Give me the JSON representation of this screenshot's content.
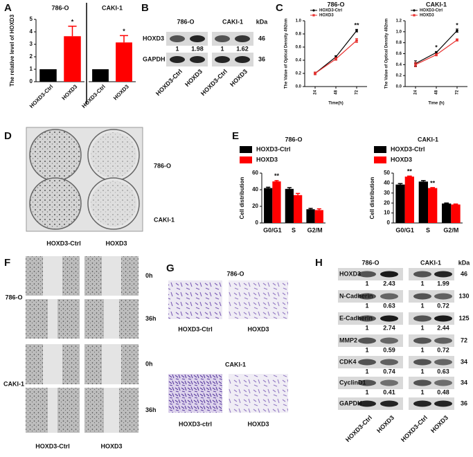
{
  "panel_labels": [
    "A",
    "B",
    "C",
    "D",
    "E",
    "F",
    "G",
    "H"
  ],
  "chart_data": [
    {
      "type": "bar",
      "title": "786-O",
      "y_label": "The relative level of HOXD3",
      "categories": [
        "HOXD3-Ctrl",
        "HOXD3"
      ],
      "values": [
        1,
        3.65
      ],
      "errors": [
        null,
        0.8
      ],
      "colors": [
        "#000000",
        "#ff0000"
      ],
      "significance": [
        null,
        "*"
      ],
      "ylim": [
        0,
        5
      ],
      "yticks": [
        0,
        1,
        2,
        3,
        4,
        5
      ]
    },
    {
      "type": "bar",
      "title": "CAKI-1",
      "categories": [
        "HOXD3-Ctrl",
        "HOXD3"
      ],
      "values": [
        1,
        3.15
      ],
      "errors": [
        null,
        0.55
      ],
      "colors": [
        "#000000",
        "#ff0000"
      ],
      "significance": [
        null,
        "*"
      ],
      "ylim": [
        0,
        5
      ]
    },
    {
      "type": "line",
      "title": "786-O",
      "x_label": "Time(h)",
      "y_label": "The Value of Optical Density 492nm",
      "x": [
        24,
        48,
        72
      ],
      "xlim": [
        12,
        84
      ],
      "xticks": [
        24,
        48,
        72
      ],
      "ylim": [
        0,
        1.0
      ],
      "yticks": [
        {
          "value": 0,
          "label": "0.0"
        },
        0.2,
        0.4,
        0.6,
        0.8,
        {
          "value": 1,
          "label": "1.0"
        }
      ],
      "series": [
        {
          "name": "HOXD3-Ctrl",
          "color": "#000000",
          "values": [
            0.2,
            0.45,
            0.85
          ],
          "errors": [
            0.02,
            0.02,
            0.02
          ]
        },
        {
          "name": "HOXD3",
          "color": "#e8312f",
          "values": [
            0.2,
            0.42,
            0.7
          ],
          "errors": [
            0.02,
            0.02,
            0.03
          ]
        }
      ],
      "significance": [
        null,
        null,
        "**"
      ]
    },
    {
      "type": "line",
      "title": "CAKI-1",
      "x_label": "Time (h)",
      "y_label": "The Value of Optical Density 492nm",
      "x": [
        24,
        48,
        72
      ],
      "xlim": [
        12,
        84
      ],
      "xticks": [
        24,
        48,
        72
      ],
      "ylim": [
        0,
        1.2
      ],
      "yticks": [
        {
          "value": 0,
          "label": "0.0"
        },
        0.2,
        0.4,
        0.6,
        0.8,
        {
          "value": 1,
          "label": "1.0"
        },
        1.2
      ],
      "series": [
        {
          "name": "HOXD3-Ctrl",
          "color": "#000000",
          "values": [
            0.42,
            0.62,
            1.02
          ],
          "errors": [
            0.05,
            0.02,
            0.03
          ]
        },
        {
          "name": "HOXD3",
          "color": "#e8312f",
          "values": [
            0.4,
            0.58,
            0.85
          ],
          "errors": [
            0.04,
            0.02,
            0.02
          ]
        }
      ],
      "significance": [
        null,
        "*",
        "*"
      ]
    },
    {
      "type": "bar",
      "title": "786-O",
      "y_label": "Cell distribution",
      "categories": [
        "G0/G1",
        "S",
        "G2/M"
      ],
      "series": [
        {
          "name": "HOXD3-Ctrl",
          "color": "#000000",
          "values": [
            42,
            41,
            16.5
          ],
          "errors": [
            1,
            1.5,
            1
          ]
        },
        {
          "name": "HOXD3",
          "color": "#ff0000",
          "values": [
            50,
            33.5,
            15.5
          ],
          "errors": [
            1,
            2,
            1.5
          ]
        }
      ],
      "significance": [
        "**",
        null,
        null
      ],
      "ylim": [
        0,
        60
      ],
      "yticks": [
        0,
        20,
        40,
        60
      ]
    },
    {
      "type": "bar",
      "title": "CAKI-1",
      "y_label": "Cell distribution",
      "categories": [
        "G0/G1",
        "S",
        "G2/M"
      ],
      "series": [
        {
          "name": "HOXD3-Ctrl",
          "color": "#000000",
          "values": [
            38.5,
            41.5,
            19.5
          ],
          "errors": [
            1,
            1,
            0.5
          ]
        },
        {
          "name": "HOXD3",
          "color": "#ff0000",
          "values": [
            46.5,
            35,
            18.5
          ],
          "errors": [
            0.5,
            0.5,
            0.5
          ]
        }
      ],
      "significance": [
        "**",
        "**",
        null
      ],
      "ylim": [
        0,
        50
      ],
      "yticks": [
        0,
        10,
        20,
        30,
        40,
        50
      ]
    }
  ],
  "blot_b": {
    "cell_lines": [
      "786-O",
      "CAKI-1"
    ],
    "unit": "kDa",
    "rows": [
      {
        "protein": "HOXD3",
        "kda": 46,
        "ratios": [
          1,
          1.98,
          1,
          1.62
        ]
      },
      {
        "protein": "GAPDH",
        "kda": 36
      }
    ],
    "lanes": [
      "HOXD3-Ctrl",
      "HOXD3",
      "HOXD3-Ctrl",
      "HOXD3"
    ]
  },
  "colony_d": {
    "rows": [
      "786-O",
      "CAKI-1"
    ],
    "columns": [
      "HOXD3-Ctrl",
      "HOXD3"
    ]
  },
  "wound_f": {
    "cell_lines": [
      "786-O",
      "CAKI-1"
    ],
    "timepoints": [
      "0h",
      "36h"
    ],
    "columns": [
      "HOXD3-Ctrl",
      "HOXD3"
    ]
  },
  "transwell_g": {
    "groups": [
      {
        "cell_line": "786-O",
        "columns": [
          "HOXD3-Ctrl",
          "HOXD3"
        ]
      },
      {
        "cell_line": "CAKI-1",
        "columns": [
          "HOXD3-ctrl",
          "HOXD3"
        ]
      }
    ]
  },
  "blot_h": {
    "cell_lines": [
      "786-O",
      "CAKI-1"
    ],
    "unit": "kDa",
    "rows": [
      {
        "protein": "HOXD3",
        "kda": 46,
        "ratios": [
          1,
          2.43,
          1,
          1.99
        ]
      },
      {
        "protein": "N-Cadherin",
        "kda": 130,
        "ratios": [
          1,
          0.63,
          1,
          0.72
        ]
      },
      {
        "protein": "E-Cadherin",
        "kda": 125,
        "ratios": [
          1,
          2.74,
          1,
          2.44
        ]
      },
      {
        "protein": "MMP2",
        "kda": 72,
        "ratios": [
          1,
          0.59,
          1,
          0.72
        ]
      },
      {
        "protein": "CDK4",
        "kda": 34,
        "ratios": [
          1,
          0.74,
          1,
          0.63
        ]
      },
      {
        "protein": "CyclinD1",
        "kda": 34,
        "ratios": [
          1,
          0.41,
          1,
          0.48
        ]
      },
      {
        "protein": "GAPDH",
        "kda": 36
      }
    ],
    "lanes": [
      "HOXD3-Ctrl",
      "HOXD3",
      "HOXD3-Ctrl",
      "HOXD3"
    ]
  }
}
